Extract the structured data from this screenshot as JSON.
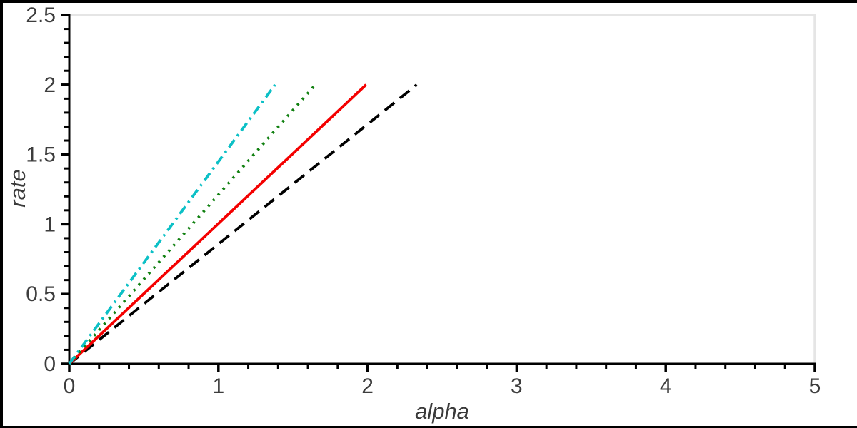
{
  "figure": {
    "background_color": "#ffffff",
    "outer_border_color": "#000000",
    "axis_color": "#000000",
    "frame_color": "#e5e5e5",
    "tick_label_color": "#3d3d3d",
    "axis_label_color": "#3a3a3a"
  },
  "chart_data": {
    "type": "line",
    "title": "",
    "xlabel": "alpha",
    "ylabel": "rate",
    "xlim": [
      0,
      5
    ],
    "ylim": [
      0,
      2.5
    ],
    "grid": false,
    "legend": false,
    "xticks": {
      "major": [
        0,
        1,
        2,
        3,
        4,
        5
      ],
      "labels": [
        "0",
        "1",
        "2",
        "3",
        "4",
        "5"
      ],
      "minor_step": 0.2
    },
    "yticks": {
      "major": [
        0,
        0.5,
        1,
        1.5,
        2,
        2.5
      ],
      "labels": [
        "0",
        "0.5",
        "1",
        "1.5",
        "2",
        "2.5"
      ],
      "minor_step": 0.1
    },
    "series": [
      {
        "name": "black-dashed-line",
        "linestyle": "dashed",
        "color": "#000000",
        "points": [
          [
            0,
            0
          ],
          [
            2.33,
            2.0
          ]
        ]
      },
      {
        "name": "red-solid-line",
        "linestyle": "solid",
        "color": "#f40000",
        "points": [
          [
            0,
            0
          ],
          [
            1.99,
            2.0
          ]
        ]
      },
      {
        "name": "green-dotted-line",
        "linestyle": "dotted",
        "color": "#108010",
        "points": [
          [
            0,
            0
          ],
          [
            1.65,
            2.0
          ]
        ]
      },
      {
        "name": "cyan-dashdot-line",
        "linestyle": "dashdot",
        "color": "#0cc0c6",
        "points": [
          [
            0,
            0
          ],
          [
            1.38,
            2.0
          ]
        ]
      }
    ]
  }
}
